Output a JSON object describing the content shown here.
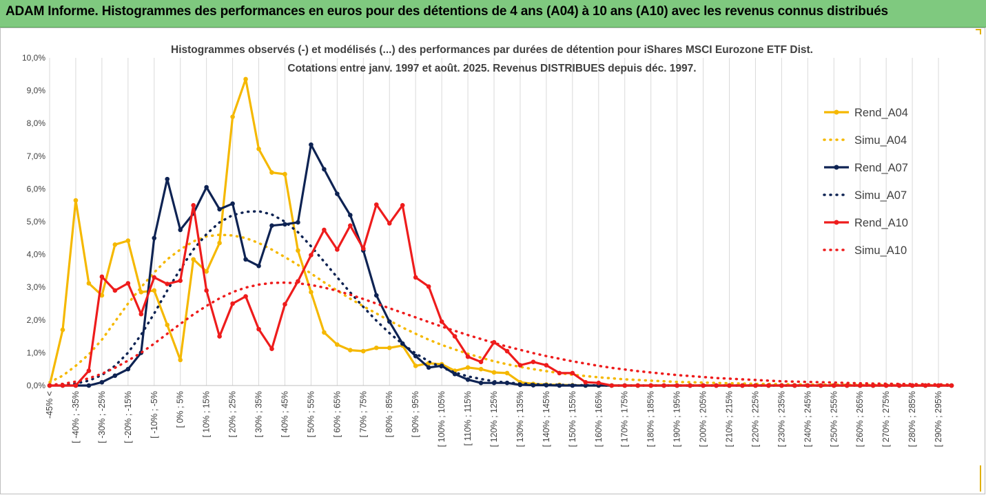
{
  "banner": {
    "title": "ADAM Informe. Histogrammes des performances en euros pour des détentions de 4 ans (A04) à 10 ans (A10) avec les revenus connus distribués"
  },
  "colors": {
    "banner_bg": "#7fc97f",
    "A04": "#f5b800",
    "A07": "#0e2353",
    "A10": "#ee1c1c",
    "grid": "#d9d9d9"
  },
  "chart_data": {
    "type": "line",
    "title": "Histogrammes observés (-) et modélisés (...) des performances par durées de détention pour iShares MSCI Eurozone ETF Dist.",
    "subtitle": "Cotations entre janv. 1997 et août. 2025. Revenus DISTRIBUES depuis déc. 1997.",
    "xlabel": "",
    "ylabel": "",
    "ylim": [
      0,
      10
    ],
    "y_ticks": [
      "0,0%",
      "1,0%",
      "2,0%",
      "3,0%",
      "4,0%",
      "5,0%",
      "6,0%",
      "7,0%",
      "8,0%",
      "9,0%",
      "10,0%"
    ],
    "grid": "vertical",
    "legend_position": "right",
    "categories": [
      "-45% <",
      "[ -40% ; -35%",
      "[ -30% ; -25%",
      "[ -20% ; -15%",
      "[ -10% ; -5%",
      "[ 0% ; 5%",
      "[ 10% ; 15%",
      "[ 20% ; 25%",
      "[ 30% ; 35%",
      "[ 40% ; 45%",
      "[ 50% ; 55%",
      "[ 60% ; 65%",
      "[ 70% ; 75%",
      "[ 80% ; 85%",
      "[ 90% ; 95%",
      "[ 100% ; 105%",
      "[ 110% ; 115%",
      "[ 120% ; 125%",
      "[ 130% ; 135%",
      "[ 140% ; 145%",
      "[ 150% ; 155%",
      "[ 160% ; 165%",
      "[ 170% ; 175%",
      "[ 180% ; 185%",
      "[ 190% ; 195%",
      "[ 200% ; 205%",
      "[ 210% ; 215%",
      "[ 220% ; 225%",
      "[ 230% ; 235%",
      "[ 240% ; 245%",
      "[ 250% ; 255%",
      "[ 260% ; 265%",
      "[ 270% ; 275%",
      "[ 280% ; 285%",
      "[ 290% ; 295%"
    ],
    "x_values": [
      -45,
      -40,
      -35,
      -30,
      -25,
      -20,
      -15,
      -10,
      -5,
      0,
      5,
      10,
      15,
      20,
      25,
      30,
      35,
      40,
      45,
      50,
      55,
      60,
      65,
      70,
      75,
      80,
      85,
      90,
      95,
      100,
      105,
      110,
      115,
      120,
      125,
      130,
      135,
      140,
      145,
      150,
      155,
      160,
      165,
      170,
      175,
      180,
      185,
      190,
      195,
      200,
      205,
      210,
      215,
      220,
      225,
      230,
      235,
      240,
      245,
      250,
      255,
      260,
      265,
      270,
      275,
      280,
      285,
      290,
      295,
      300
    ],
    "series": [
      {
        "name": "Rend_A04",
        "style": "solid",
        "color_key": "A04",
        "values": [
          0,
          1.7,
          5.65,
          3.12,
          2.75,
          4.3,
          4.42,
          2.85,
          2.9,
          1.85,
          0.78,
          3.85,
          3.48,
          4.35,
          8.2,
          9.35,
          7.22,
          6.5,
          6.45,
          4.12,
          2.85,
          1.62,
          1.25,
          1.08,
          1.05,
          1.15,
          1.15,
          1.22,
          0.6,
          0.68,
          0.65,
          0.45,
          0.55,
          0.5,
          0.4,
          0.38,
          0.1,
          0.05,
          0.03,
          0.02,
          0.01,
          0,
          0,
          0,
          0,
          0,
          0,
          0,
          0,
          0,
          0,
          0,
          0,
          0,
          0,
          0,
          0,
          0,
          0,
          0,
          0,
          0,
          0,
          0,
          0,
          0,
          0,
          0,
          0,
          0
        ]
      },
      {
        "name": "Simu_A04",
        "style": "dotted",
        "color_key": "A04",
        "values": [
          0.1,
          0.3,
          0.6,
          0.95,
          1.4,
          1.95,
          2.5,
          3.0,
          3.45,
          3.85,
          4.15,
          4.4,
          4.55,
          4.6,
          4.58,
          4.5,
          4.35,
          4.15,
          3.92,
          3.68,
          3.42,
          3.15,
          2.9,
          2.65,
          2.42,
          2.2,
          1.98,
          1.77,
          1.58,
          1.4,
          1.24,
          1.1,
          0.97,
          0.85,
          0.74,
          0.65,
          0.57,
          0.5,
          0.44,
          0.38,
          0.33,
          0.29,
          0.25,
          0.22,
          0.19,
          0.17,
          0.15,
          0.13,
          0.11,
          0.1,
          0.09,
          0.08,
          0.07,
          0.06,
          0.05,
          0.05,
          0.04,
          0.04,
          0.03,
          0.03,
          0.03,
          0.02,
          0.02,
          0.02,
          0.02,
          0.01,
          0.01,
          0.01,
          0.01,
          0.01
        ]
      },
      {
        "name": "Rend_A07",
        "style": "solid",
        "color_key": "A07",
        "values": [
          0,
          0,
          0,
          0,
          0.1,
          0.3,
          0.5,
          1.0,
          4.5,
          6.3,
          4.75,
          5.25,
          6.05,
          5.38,
          5.55,
          3.85,
          3.65,
          4.88,
          4.92,
          4.98,
          7.35,
          6.6,
          5.85,
          5.2,
          4.12,
          2.75,
          1.95,
          1.28,
          0.9,
          0.55,
          0.6,
          0.35,
          0.18,
          0.08,
          0.08,
          0.08,
          0.02,
          0.01,
          0.01,
          0,
          0,
          0,
          0,
          0,
          0,
          0,
          0,
          0,
          0,
          0,
          0,
          0,
          0,
          0,
          0,
          0,
          0,
          0,
          0,
          0,
          0,
          0,
          0,
          0,
          0,
          0,
          0,
          0,
          0,
          0
        ]
      },
      {
        "name": "Simu_A07",
        "style": "dotted",
        "color_key": "A07",
        "values": [
          0,
          0.02,
          0.06,
          0.15,
          0.32,
          0.6,
          1.0,
          1.55,
          2.2,
          2.9,
          3.55,
          4.15,
          4.62,
          4.98,
          5.2,
          5.3,
          5.32,
          5.22,
          5.0,
          4.68,
          4.25,
          3.78,
          3.3,
          2.84,
          2.4,
          1.98,
          1.6,
          1.27,
          0.98,
          0.74,
          0.55,
          0.4,
          0.28,
          0.2,
          0.13,
          0.09,
          0.06,
          0.04,
          0.03,
          0.02,
          0.01,
          0.01,
          0,
          0,
          0,
          0,
          0,
          0,
          0,
          0,
          0,
          0,
          0,
          0,
          0,
          0,
          0,
          0,
          0,
          0,
          0,
          0,
          0,
          0,
          0,
          0,
          0,
          0,
          0,
          0
        ]
      },
      {
        "name": "Rend_A10",
        "style": "solid",
        "color_key": "A10",
        "values": [
          0,
          0,
          0,
          0.45,
          3.32,
          2.9,
          3.12,
          2.18,
          3.3,
          3.1,
          3.2,
          5.5,
          2.9,
          1.5,
          2.5,
          2.72,
          1.72,
          1.12,
          2.48,
          3.18,
          3.98,
          4.75,
          4.15,
          4.88,
          4.18,
          5.52,
          4.95,
          5.5,
          3.3,
          3.02,
          1.95,
          1.5,
          0.88,
          0.72,
          1.32,
          1.05,
          0.62,
          0.72,
          0.62,
          0.38,
          0.38,
          0.1,
          0.08,
          0,
          0,
          0,
          0,
          0,
          0,
          0,
          0,
          0,
          0,
          0,
          0,
          0,
          0,
          0,
          0,
          0,
          0,
          0,
          0,
          0,
          0,
          0,
          0,
          0,
          0,
          0
        ]
      },
      {
        "name": "Simu_A10",
        "style": "dotted",
        "color_key": "A10",
        "values": [
          0.02,
          0.05,
          0.12,
          0.22,
          0.36,
          0.54,
          0.76,
          1.0,
          1.28,
          1.58,
          1.88,
          2.17,
          2.43,
          2.66,
          2.85,
          2.99,
          3.08,
          3.13,
          3.14,
          3.12,
          3.07,
          2.99,
          2.89,
          2.77,
          2.64,
          2.5,
          2.36,
          2.22,
          2.08,
          1.94,
          1.8,
          1.67,
          1.54,
          1.42,
          1.3,
          1.19,
          1.09,
          0.99,
          0.9,
          0.82,
          0.74,
          0.67,
          0.6,
          0.54,
          0.49,
          0.44,
          0.4,
          0.36,
          0.32,
          0.29,
          0.26,
          0.23,
          0.21,
          0.19,
          0.17,
          0.15,
          0.13,
          0.12,
          0.11,
          0.1,
          0.09,
          0.08,
          0.07,
          0.06,
          0.055,
          0.05,
          0.045,
          0.04,
          0.035,
          0.03
        ]
      }
    ]
  }
}
